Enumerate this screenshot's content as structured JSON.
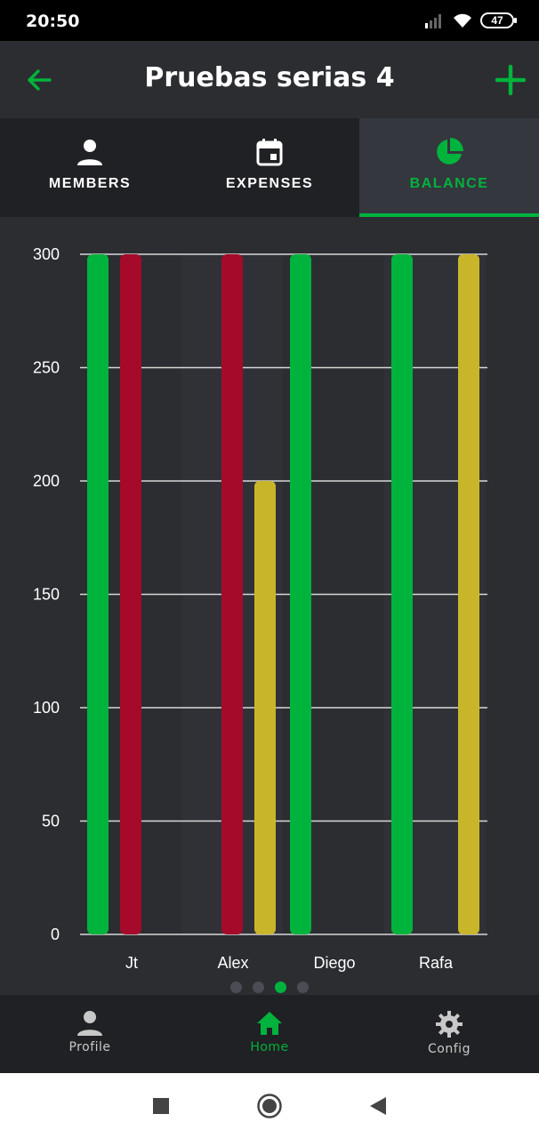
{
  "status_bar": {
    "time": "20:50",
    "battery": "47"
  },
  "app_bar": {
    "title": "Pruebas serias 4",
    "back_icon": "arrow-left-icon",
    "add_icon": "plus-icon"
  },
  "tabs": [
    {
      "label": "MEMBERS",
      "icon": "person-icon",
      "active": false
    },
    {
      "label": "EXPENSES",
      "icon": "calendar-icon",
      "active": false
    },
    {
      "label": "BALANCE",
      "icon": "pie-chart-icon",
      "active": true
    }
  ],
  "colors": {
    "accent": "#00b33c",
    "red": "#a50a2a",
    "yellow": "#c9b52a",
    "background": "#2b2d31"
  },
  "chart_data": {
    "type": "bar",
    "categories": [
      "",
      "Jt",
      "Alex",
      "Diego",
      "Rafa"
    ],
    "bars": [
      {
        "slot": 0,
        "x": 110,
        "value": 300,
        "color": "#00b33c"
      },
      {
        "slot": 0,
        "x": 147,
        "value": 300,
        "color": "#a50a2a"
      },
      {
        "slot": 1,
        "x": 261,
        "value": 300,
        "color": "#a50a2a"
      },
      {
        "slot": 1,
        "x": 298,
        "value": 200,
        "color": "#c9b52a"
      },
      {
        "slot": 2,
        "x": 338,
        "value": 300,
        "color": "#00b33c"
      },
      {
        "slot": 3,
        "x": 452,
        "value": 300,
        "color": "#00b33c"
      },
      {
        "slot": 4,
        "x": 527,
        "value": 300,
        "color": "#c9b52a"
      }
    ],
    "yticks": [
      0,
      50,
      100,
      150,
      200,
      250,
      300
    ],
    "ylim": [
      0,
      300
    ],
    "grid": true
  },
  "pager": {
    "count": 4,
    "active_index": 2
  },
  "bottom_nav": [
    {
      "label": "Profile",
      "icon": "person-icon",
      "active": false
    },
    {
      "label": "Home",
      "icon": "home-icon",
      "active": true
    },
    {
      "label": "Config",
      "icon": "gear-icon",
      "active": false
    }
  ],
  "system_nav": [
    "square-icon",
    "circle-icon",
    "back-triangle-icon"
  ]
}
